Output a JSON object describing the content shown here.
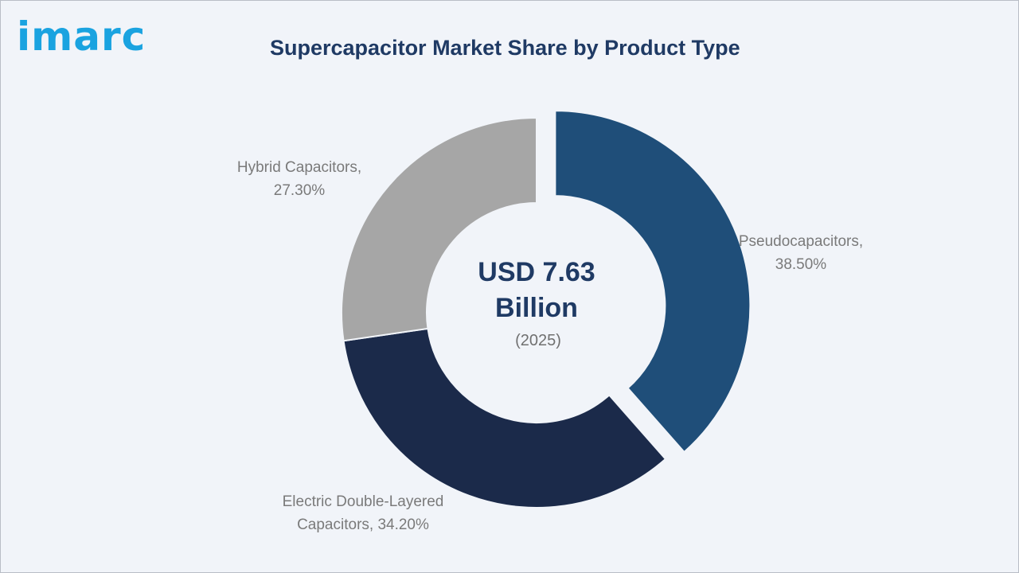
{
  "logo": {
    "text": "imarc",
    "color": "#1aa3e0"
  },
  "chart_data": {
    "type": "pie",
    "title": "Supercapacitor Market Share by Product Type",
    "center": {
      "value_line1": "USD 7.63",
      "value_line2": "Billion",
      "year": "(2025)"
    },
    "slices": [
      {
        "label_lines": [
          "Pseudocapacitors,",
          "38.50%"
        ],
        "value": 38.5,
        "color": "#1f4e79",
        "exploded": true
      },
      {
        "label_lines": [
          "Electric Double-Layered",
          "Capacitors, 34.20%"
        ],
        "value": 34.2,
        "color": "#1b2a4a",
        "exploded": false
      },
      {
        "label_lines": [
          "Hybrid Capacitors,",
          "27.30%"
        ],
        "value": 27.3,
        "color": "#a6a6a6",
        "exploded": false
      }
    ],
    "legend": "none"
  }
}
